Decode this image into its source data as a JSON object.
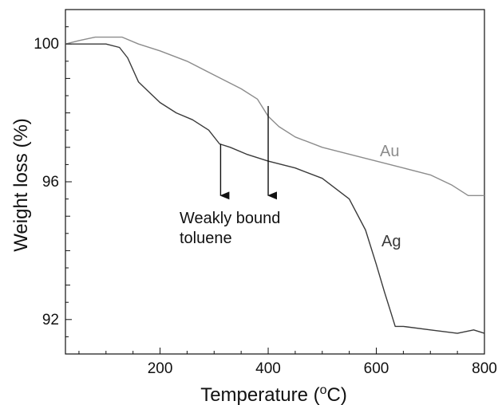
{
  "chart_data": {
    "type": "line",
    "xlabel": "Temperature (",
    "xlabel_sup": "o",
    "xlabel_tail": "C)",
    "ylabel": "Weight loss (%)",
    "xlim": [
      25,
      800
    ],
    "ylim": [
      91.0,
      101.0
    ],
    "x_ticks": [
      200,
      400,
      600,
      800
    ],
    "x_tick_labels": [
      "200",
      "400",
      "600",
      "800"
    ],
    "y_ticks": [
      92,
      96,
      100
    ],
    "y_tick_labels": [
      "92",
      "96",
      "100"
    ],
    "grid": false,
    "colors": {
      "Au": "#8c8c8c",
      "Ag": "#3a3a3a",
      "axis": "#111111"
    },
    "series": [
      {
        "name": "Au",
        "x": [
          25,
          50,
          80,
          110,
          130,
          160,
          200,
          250,
          300,
          350,
          380,
          400,
          420,
          450,
          500,
          550,
          600,
          650,
          700,
          740,
          770,
          800
        ],
        "y": [
          100.0,
          100.1,
          100.2,
          100.2,
          100.2,
          100.0,
          99.8,
          99.5,
          99.1,
          98.7,
          98.4,
          97.9,
          97.6,
          97.3,
          97.0,
          96.8,
          96.6,
          96.4,
          96.2,
          95.9,
          95.6,
          95.6
        ]
      },
      {
        "name": "Ag",
        "x": [
          25,
          100,
          125,
          140,
          160,
          180,
          200,
          230,
          260,
          290,
          310,
          330,
          360,
          400,
          450,
          500,
          550,
          580,
          600,
          615,
          625,
          635,
          650,
          700,
          750,
          780,
          800
        ],
        "y": [
          100.0,
          100.0,
          99.9,
          99.6,
          98.9,
          98.6,
          98.3,
          98.0,
          97.8,
          97.5,
          97.1,
          97.0,
          96.8,
          96.6,
          96.4,
          96.1,
          95.5,
          94.6,
          93.6,
          92.8,
          92.3,
          91.8,
          91.8,
          91.7,
          91.6,
          91.7,
          91.6
        ]
      }
    ],
    "annotations": {
      "text_line1": "Weakly bound",
      "text_line2": "toluene",
      "arrows": [
        {
          "x": 312,
          "from_y": 97.1,
          "to_y": 95.6
        },
        {
          "x": 400,
          "from_y": 98.2,
          "to_y": 95.6
        }
      ]
    }
  }
}
